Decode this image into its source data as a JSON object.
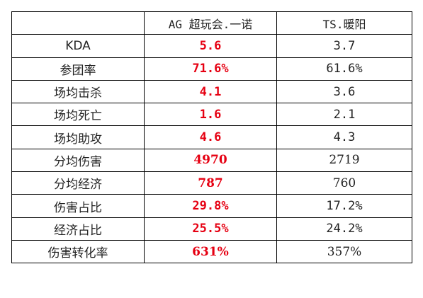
{
  "table": {
    "header": {
      "corner": "",
      "player_a": "AG 超玩会.一诺",
      "player_b": "TS.暖阳"
    },
    "rows": [
      {
        "label": "KDA",
        "a": "5.6",
        "b": "3.7"
      },
      {
        "label": "参团率",
        "a": "71.6%",
        "b": "61.6%"
      },
      {
        "label": "场均击杀",
        "a": "4.1",
        "b": "3.6"
      },
      {
        "label": "场均死亡",
        "a": "1.6",
        "b": "2.1"
      },
      {
        "label": "场均助攻",
        "a": "4.6",
        "b": "4.3"
      },
      {
        "label": "分均伤害",
        "a": "4970",
        "b": "2719"
      },
      {
        "label": "分均经济",
        "a": "787",
        "b": "760"
      },
      {
        "label": "伤害占比",
        "a": "29.8%",
        "b": "17.2%"
      },
      {
        "label": "经济占比",
        "a": "25.5%",
        "b": "24.2%"
      },
      {
        "label": "伤害转化率",
        "a": "631%",
        "b": "357%"
      }
    ]
  },
  "colors": {
    "highlight": "#e60012",
    "text": "#222222",
    "border": "#000000"
  }
}
